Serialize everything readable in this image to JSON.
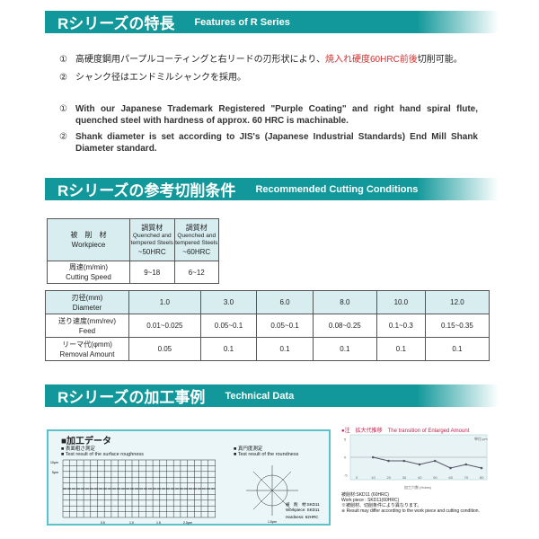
{
  "section1": {
    "title_jp": "Rシリーズの特長",
    "title_en": "Features of R Series",
    "jp_items": [
      {
        "num": "①",
        "text_before": "高硬度鋼用パープルコーティングと右リードの刃形状により、",
        "text_red": "焼入れ硬度60HRC前後",
        "text_after": "切削可能。"
      },
      {
        "num": "②",
        "text": "シャンク径はエンドミルシャンクを採用。"
      }
    ],
    "en_items": [
      {
        "num": "①",
        "text": "With our Japanese Trademark Registered \"Purple Coating\" and right hand spiral flute, quenched steel with hardness of approx. 60 HRC is machinable."
      },
      {
        "num": "②",
        "text": "Shank diameter is set according to JIS's (Japanese Industrial Standards) End Mill Shank Diameter standard."
      }
    ]
  },
  "section2": {
    "title_jp": "Rシリーズの参考切削条件",
    "title_en": "Recommended Cutting Conditions",
    "table1": {
      "workpiece_jp": "被　削　材",
      "workpiece_en": "Workpiece",
      "materials": [
        {
          "jp": "調質材",
          "en": "Quenched and tempered Steels",
          "hrc": "~50HRC"
        },
        {
          "jp": "調質材",
          "en": "Quenched and tempered Steels",
          "hrc": "~60HRC"
        }
      ],
      "speed_jp": "周速(m/min)",
      "speed_en": "Cutting Speed",
      "speeds": [
        "9~18",
        "6~12"
      ]
    },
    "table2": {
      "diameter_jp": "刃径(mm)",
      "diameter_en": "Diameter",
      "diameters": [
        "1.0",
        "3.0",
        "6.0",
        "8.0",
        "10.0",
        "12.0"
      ],
      "feed_jp": "送り速度(mm/rev)",
      "feed_en": "Feed",
      "feeds": [
        "0.01~0.025",
        "0.05~0.1",
        "0.05~0.1",
        "0.08~0.25",
        "0.1~0.3",
        "0.15~0.35"
      ],
      "removal_jp": "リーマ代(φmm)",
      "removal_en": "Removal Amount",
      "removals": [
        "0.05",
        "0.1",
        "0.1",
        "0.1",
        "0.1",
        "0.1"
      ]
    }
  },
  "section3": {
    "title_jp": "Rシリーズの加工事例",
    "title_en": "Technical Data",
    "data_title": "■加工データ",
    "rough_jp": "■ 表面粗さ測定",
    "rough_en": "■ Test result of the surface roughness",
    "round_jp": "■ 真円度測定",
    "round_en": "■ Test result of the roundness",
    "rough_y_ticks": [
      "10μm",
      "5μm"
    ],
    "rough_x_ticks": [
      "0.5",
      "1.0",
      "1.5",
      "2.0μm"
    ],
    "workpiece_jp": "被　削　材:SKD11",
    "workpiece_en": "Workpiece: SKD11",
    "hardness": "Hardness: 62HRC",
    "scale": "1.5μm",
    "enlarged": {
      "title_jp": "●注　拡大代推移",
      "title_en": "The transition of Enlarged Amount",
      "unit": "単位:μm",
      "xlabel": "加工穴数 (Holes)",
      "notes": [
        "被削材:SKD11 (60HRC)",
        "Work piece : SKD11(60HRC)",
        "※被削材、切削条件により異なります。",
        "※ Result may differ according to the work piece and cutting condition."
      ]
    }
  },
  "chart_data": {
    "type": "line",
    "xlabel": "加工穴数 (Holes)",
    "ylabel": "",
    "unit": "単位:μm",
    "xlim": [
      0,
      80
    ],
    "ylim": [
      -5,
      5
    ],
    "x_ticks": [
      0,
      10,
      20,
      30,
      40,
      50,
      60,
      70,
      80
    ],
    "y_ticks": [
      5,
      0,
      -5
    ],
    "grid": false,
    "x": [
      10,
      20,
      30,
      40,
      50,
      60,
      70,
      80
    ],
    "y": [
      0,
      -1,
      -1,
      -2,
      -1,
      -3,
      -2,
      -3
    ]
  },
  "colors": {
    "header": "#12989a",
    "accent_red": "#d03030",
    "table_header": "#d8edf0"
  }
}
